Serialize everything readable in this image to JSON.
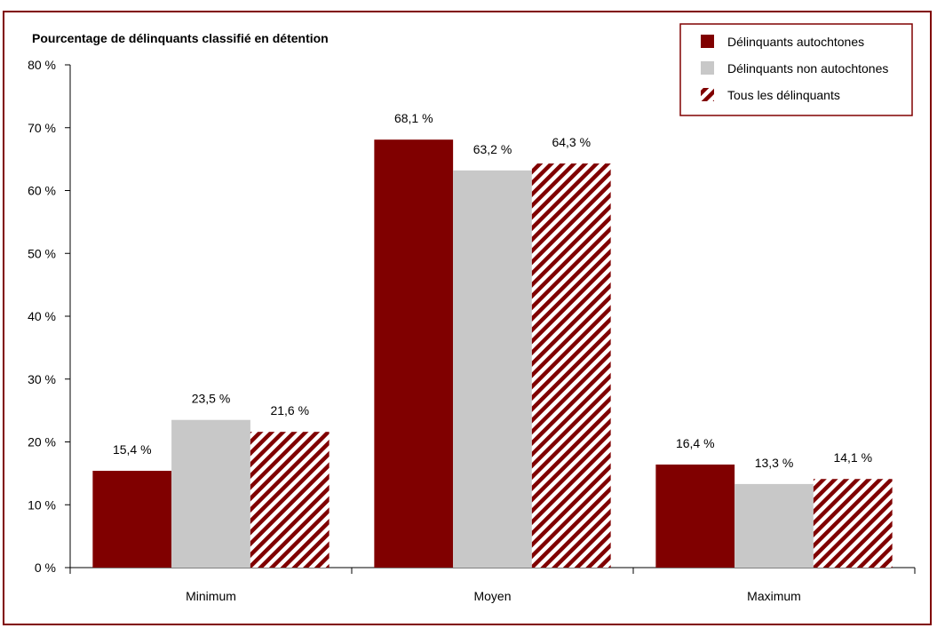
{
  "chart_data": {
    "type": "bar",
    "ylabel": "Pourcentage de délinquants classifié en détention",
    "categories": [
      "Minimum",
      "Moyen",
      "Maximum"
    ],
    "series": [
      {
        "name": "Délinquants autochtones",
        "values": [
          15.4,
          68.1,
          16.4
        ],
        "labels": [
          "15,4 %",
          "68,1 %",
          "16,4 %"
        ],
        "color": "#800000",
        "pattern": "solid"
      },
      {
        "name": "Délinquants non autochtones",
        "values": [
          23.5,
          63.2,
          13.3
        ],
        "labels": [
          "23,5 %",
          "63,2 %",
          "13,3 %"
        ],
        "color": "#c8c8c8",
        "pattern": "solid"
      },
      {
        "name": "Tous les délinquants",
        "values": [
          21.6,
          64.3,
          14.1
        ],
        "labels": [
          "21,6 %",
          "64,3 %",
          "14,1 %"
        ],
        "color": "#800000",
        "pattern": "diagonal-hatch"
      }
    ],
    "ylim": [
      0,
      80
    ],
    "yticks": [
      0,
      10,
      20,
      30,
      40,
      50,
      60,
      70,
      80
    ],
    "ytick_labels": [
      "0 %",
      "10 %",
      "20 %",
      "30 %",
      "40 %",
      "50 %",
      "60 %",
      "70 %",
      "80 %"
    ],
    "grid": false,
    "legend_position": "top-right",
    "frame_color": "#800000"
  }
}
